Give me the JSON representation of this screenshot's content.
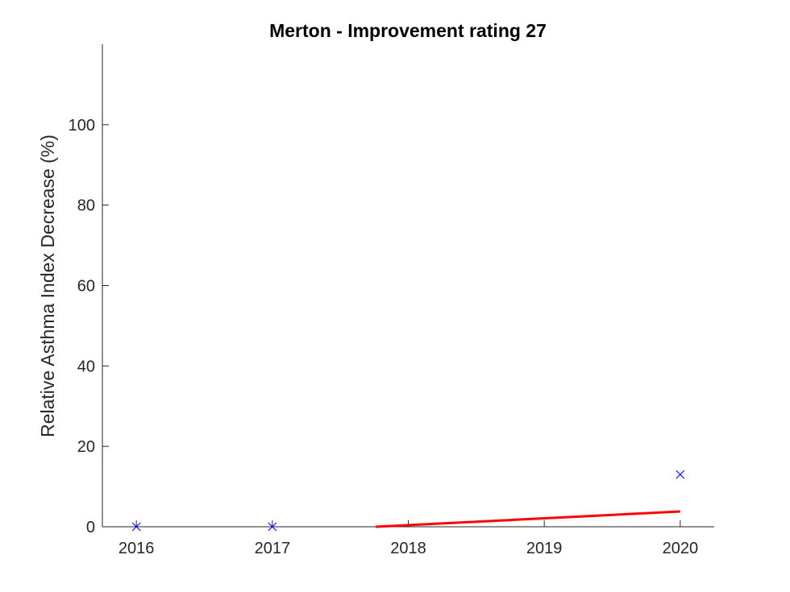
{
  "chart_data": {
    "type": "scatter",
    "title": "Merton - Improvement rating 27",
    "xlabel": "",
    "ylabel": "Relative Asthma Index Decrease (%)",
    "xlim": [
      2015.75,
      2020.25
    ],
    "ylim": [
      0,
      120
    ],
    "xticks": [
      2016,
      2017,
      2018,
      2019,
      2020
    ],
    "yticks": [
      0,
      20,
      40,
      60,
      80,
      100
    ],
    "grid": false,
    "legend": "none",
    "series": [
      {
        "kind": "scatter",
        "marker": "x",
        "color": "#0000ff",
        "x": [
          2016,
          2017,
          2020
        ],
        "y": [
          0,
          0,
          13
        ]
      },
      {
        "kind": "line",
        "color": "#ff0000",
        "x": [
          2017.76,
          2020
        ],
        "y": [
          0,
          3.8
        ]
      }
    ]
  }
}
